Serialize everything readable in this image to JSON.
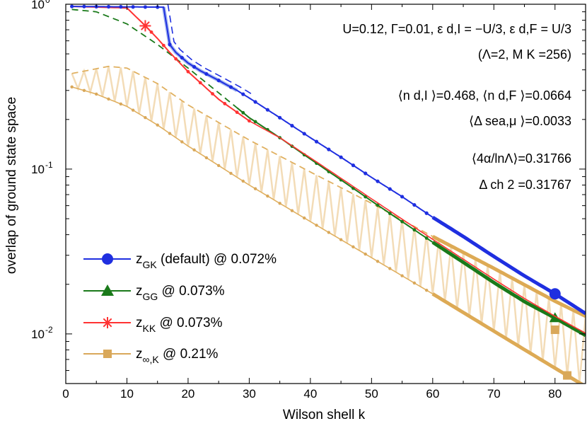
{
  "chart_data": {
    "type": "line",
    "xlabel": "Wilson shell k",
    "ylabel": "overlap of ground state space",
    "xlim": [
      0,
      85
    ],
    "ylim": [
      0.005,
      1.0
    ],
    "yscale": "log",
    "xticks": [
      0,
      10,
      20,
      30,
      40,
      50,
      60,
      70,
      80
    ],
    "yticks": [
      {
        "value": 0.01,
        "base": "10",
        "exp": "-2"
      },
      {
        "value": 0.1,
        "base": "10",
        "exp": "-1"
      },
      {
        "value": 1.0,
        "base": "10",
        "exp": "0"
      }
    ],
    "grid": false,
    "legend_position": "bottom-left",
    "annotations": [
      "U=0.12, Γ=0.01, ε d,I = −U/3, ε d,F = U/3",
      "(Λ=2, M K =256)",
      "⟨n d,I ⟩=0.468, ⟨n d,F ⟩=0.0664",
      "⟨Δ sea,μ ⟩=0.0033",
      "⟨4α/lnΛ⟩=0.31766",
      "Δ ch 2 =0.31767"
    ],
    "series": [
      {
        "name": "z GK (default) @ 0.072%",
        "legend": {
          "sym": "z",
          "sub": "GK",
          "text": " (default) @ 0.072%"
        },
        "color": "#1f2fe0",
        "marker": "circle",
        "points": [
          [
            1,
            0.97
          ],
          [
            16,
            0.96
          ],
          [
            17,
            0.57
          ],
          [
            18,
            0.51
          ],
          [
            20,
            0.44
          ],
          [
            22,
            0.395
          ],
          [
            25,
            0.345
          ],
          [
            28,
            0.3
          ],
          [
            30,
            0.27
          ],
          [
            35,
            0.205
          ],
          [
            40,
            0.155
          ],
          [
            45,
            0.118
          ],
          [
            50,
            0.089
          ],
          [
            55,
            0.068
          ],
          [
            60,
            0.051
          ],
          [
            65,
            0.039
          ],
          [
            70,
            0.0295
          ],
          [
            75,
            0.0225
          ],
          [
            80,
            0.0175
          ],
          [
            85,
            0.0133
          ]
        ],
        "highlight": {
          "x": 80,
          "y": 0.0175
        }
      },
      {
        "name": "z GG @ 0.073%",
        "legend": {
          "sym": "z",
          "sub": "GG",
          "text": " @ 0.073%"
        },
        "color": "#1a7a1a",
        "marker": "triangle",
        "points": [
          [
            1,
            0.93
          ],
          [
            5,
            0.9
          ],
          [
            10,
            0.76
          ],
          [
            15,
            0.57
          ],
          [
            20,
            0.41
          ],
          [
            25,
            0.29
          ],
          [
            30,
            0.205
          ],
          [
            35,
            0.155
          ],
          [
            40,
            0.115
          ],
          [
            45,
            0.086
          ],
          [
            50,
            0.064
          ],
          [
            55,
            0.048
          ],
          [
            60,
            0.036
          ],
          [
            65,
            0.0272
          ],
          [
            70,
            0.0205
          ],
          [
            75,
            0.0157
          ],
          [
            80,
            0.0125
          ],
          [
            85,
            0.0098
          ]
        ],
        "highlight": {
          "x": 80,
          "y": 0.0125
        }
      },
      {
        "name": "z KK @ 0.073%",
        "legend": {
          "sym": "z",
          "sub": "KK",
          "text": " @ 0.073%"
        },
        "color": "#ff3333",
        "marker": "asterisk",
        "points": [
          [
            1,
            0.97
          ],
          [
            10,
            0.95
          ],
          [
            13,
            0.74
          ],
          [
            15,
            0.62
          ],
          [
            17,
            0.51
          ],
          [
            20,
            0.39
          ],
          [
            25,
            0.265
          ],
          [
            30,
            0.196
          ],
          [
            35,
            0.155
          ],
          [
            40,
            0.117
          ],
          [
            45,
            0.088
          ],
          [
            50,
            0.066
          ],
          [
            55,
            0.0497
          ],
          [
            60,
            0.0375
          ],
          [
            65,
            0.0284
          ],
          [
            70,
            0.0215
          ],
          [
            75,
            0.0164
          ],
          [
            80,
            0.0128
          ],
          [
            85,
            0.0101
          ]
        ],
        "highlight": {
          "x": 13,
          "y": 0.74
        }
      },
      {
        "name": "z ∞,K @ 0.21%",
        "legend": {
          "sym": "z",
          "sub": "∞,K",
          "text": " @ 0.21%"
        },
        "color": "#e0b060",
        "marker": "square",
        "upper": [
          [
            1,
            0.38
          ],
          [
            7,
            0.42
          ],
          [
            10,
            0.41
          ],
          [
            15,
            0.33
          ],
          [
            20,
            0.245
          ],
          [
            30,
            0.15
          ],
          [
            40,
            0.096
          ],
          [
            50,
            0.062
          ],
          [
            60,
            0.039
          ],
          [
            70,
            0.025
          ],
          [
            80,
            0.0158
          ],
          [
            85,
            0.0128
          ]
        ],
        "lower": [
          [
            1,
            0.315
          ],
          [
            3,
            0.3
          ],
          [
            5,
            0.285
          ],
          [
            10,
            0.24
          ],
          [
            15,
            0.185
          ],
          [
            20,
            0.138
          ],
          [
            30,
            0.08
          ],
          [
            40,
            0.048
          ],
          [
            50,
            0.029
          ],
          [
            60,
            0.0175
          ],
          [
            70,
            0.0104
          ],
          [
            80,
            0.0062
          ],
          [
            85,
            0.0048
          ]
        ],
        "highlight": {
          "x": 80,
          "y": 0.0106
        },
        "highlight2": {
          "x": 82,
          "y": 0.0056
        }
      }
    ]
  }
}
